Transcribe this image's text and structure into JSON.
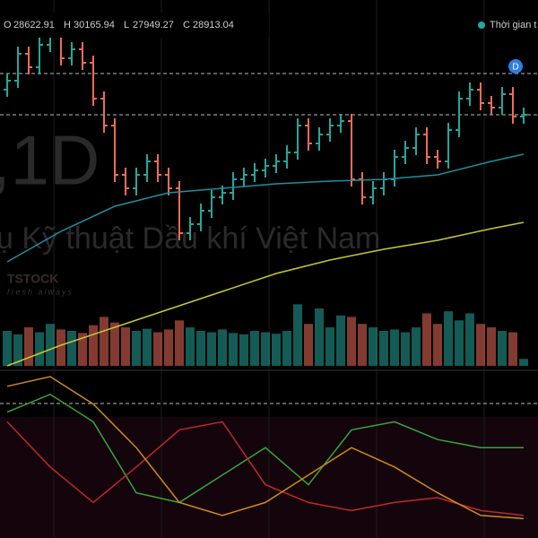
{
  "header": {
    "open_label": "O",
    "open": 28622.91,
    "high_label": "H",
    "high": 30165.94,
    "low_label": "L",
    "low": 27949.27,
    "close_label": "C",
    "close": 28913.04,
    "timezone": "Thời gian t",
    "marker": "D"
  },
  "watermark": {
    "interval": ",1D",
    "name": "ụ Kỹ thuật Dầu khí Việt Nam",
    "brand": "TSTOCK",
    "slogan": "fresh always"
  },
  "chart_data": [
    {
      "type": "candlestick",
      "ylim": [
        -6000,
        35000
      ],
      "up_color": "#26a69a",
      "down_color": "#ef6c5a",
      "open": [
        25000,
        26000,
        29000,
        27500,
        30000,
        31000,
        28500,
        29500,
        28000,
        24000,
        21000,
        15500,
        14000,
        15500,
        17000,
        15500,
        14000,
        9000,
        10000,
        11500,
        13000,
        13500,
        15000,
        15500,
        16000,
        16500,
        17000,
        18000,
        21000,
        19000,
        20000,
        21000,
        21500,
        15000,
        13000,
        14000,
        15000,
        17500,
        18500,
        20000,
        17500,
        17000,
        20500,
        24000,
        25000,
        23500,
        23000,
        24500,
        22000
      ],
      "high": [
        26800,
        29800,
        29800,
        30800,
        31800,
        31800,
        30300,
        30300,
        28800,
        24800,
        21800,
        16300,
        16300,
        17800,
        17800,
        16300,
        14800,
        10800,
        12300,
        13800,
        14300,
        15800,
        16300,
        16800,
        17300,
        17800,
        18800,
        21800,
        21800,
        20800,
        21800,
        22300,
        22300,
        15800,
        14800,
        15800,
        18300,
        19300,
        20800,
        20800,
        18300,
        21300,
        24800,
        25800,
        25800,
        24300,
        25300,
        25300,
        23000
      ],
      "low": [
        24200,
        25200,
        26700,
        26700,
        29200,
        27700,
        27700,
        27200,
        23200,
        20200,
        14700,
        13200,
        13200,
        14700,
        14700,
        13200,
        8200,
        8200,
        9200,
        10700,
        12200,
        12700,
        14200,
        14700,
        15200,
        15700,
        16200,
        17200,
        18200,
        18200,
        19200,
        20200,
        14200,
        12200,
        12200,
        13200,
        14200,
        16700,
        17700,
        16700,
        16200,
        16200,
        19700,
        23200,
        22700,
        22200,
        22200,
        21200,
        21200
      ],
      "close": [
        26000,
        29000,
        27500,
        30000,
        31000,
        28500,
        29500,
        28000,
        24000,
        21000,
        15500,
        14000,
        15500,
        17000,
        15500,
        14000,
        9000,
        10000,
        11500,
        13000,
        13500,
        15000,
        15500,
        16000,
        16500,
        17000,
        18000,
        21000,
        19000,
        20000,
        21000,
        21500,
        15000,
        13000,
        14000,
        15000,
        17500,
        18500,
        20000,
        17500,
        17000,
        20500,
        24000,
        25000,
        23500,
        23000,
        24500,
        22000,
        22200
      ],
      "series": [
        {
          "color": "#1f8fa0",
          "x": [
            0,
            5,
            10,
            15,
            20,
            25,
            30,
            35,
            40,
            45,
            48
          ],
          "values": [
            5800,
            9200,
            12000,
            13500,
            14000,
            14500,
            14800,
            15000,
            15500,
            17000,
            17800
          ]
        },
        {
          "color": "#c8c832",
          "x": [
            0,
            5,
            10,
            15,
            20,
            25,
            30,
            35,
            40,
            45,
            48
          ],
          "values": [
            -5800,
            -3500,
            -1500,
            500,
            2500,
            4500,
            6000,
            7200,
            8200,
            9500,
            10200
          ]
        }
      ],
      "volume": {
        "vlim": [
          0,
          100
        ],
        "values": [
          50,
          45,
          55,
          48,
          60,
          52,
          50,
          47,
          58,
          70,
          62,
          55,
          50,
          53,
          48,
          52,
          65,
          55,
          50,
          48,
          52,
          47,
          45,
          50,
          48,
          46,
          50,
          88,
          60,
          82,
          55,
          72,
          70,
          60,
          55,
          50,
          52,
          48,
          55,
          75,
          60,
          78,
          65,
          75,
          60,
          55,
          50,
          48,
          10
        ]
      }
    },
    {
      "type": "line",
      "ylim": [
        0,
        100
      ],
      "series": [
        {
          "color": "#3aa53a",
          "x": [
            0,
            4,
            8,
            12,
            16,
            20,
            24,
            28,
            32,
            36,
            40,
            44,
            48
          ],
          "values": [
            78,
            89,
            72,
            28,
            22,
            39,
            56,
            33,
            67,
            72,
            61,
            56,
            56
          ]
        },
        {
          "color": "#c0272d",
          "x": [
            0,
            4,
            8,
            12,
            16,
            20,
            24,
            28,
            32,
            36,
            40,
            44,
            48
          ],
          "values": [
            72,
            44,
            22,
            44,
            67,
            72,
            33,
            22,
            17,
            22,
            25,
            17,
            14
          ]
        },
        {
          "color": "#d08a1c",
          "x": [
            0,
            4,
            8,
            12,
            16,
            20,
            24,
            28,
            32,
            36,
            40,
            44,
            48
          ],
          "values": [
            94,
            100,
            83,
            56,
            22,
            14,
            22,
            39,
            56,
            44,
            28,
            14,
            12
          ]
        }
      ]
    }
  ]
}
